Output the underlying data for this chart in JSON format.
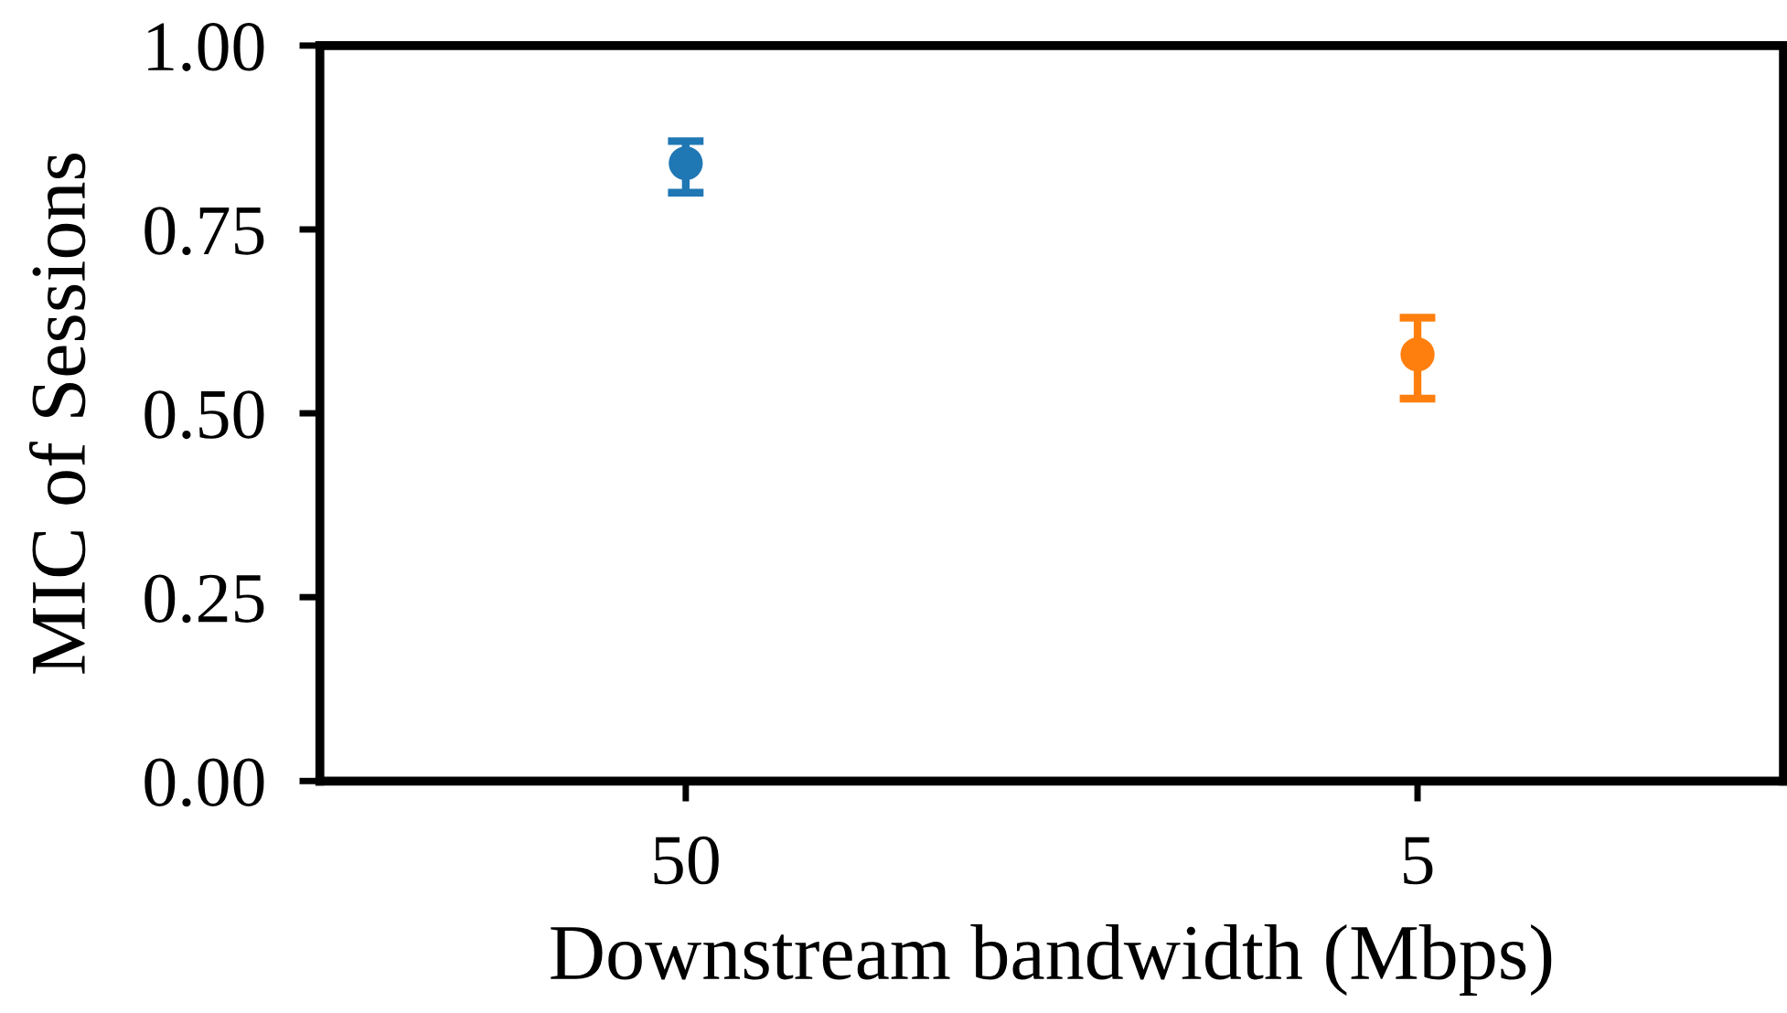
{
  "chart_data": {
    "type": "scatter",
    "xlabel": "Downstream bandwidth (Mbps)",
    "ylabel": "MIC of Sessions",
    "categories": [
      "50",
      "5"
    ],
    "values": [
      0.84,
      0.58
    ],
    "colors": [
      "#1f77b4",
      "#ff7f0e"
    ],
    "errors": [
      [
        0.8,
        0.87
      ],
      [
        0.52,
        0.63
      ]
    ],
    "marker": "circle",
    "ylim": [
      0,
      1
    ],
    "yticks": [
      {
        "value": 0,
        "label": "0.00"
      },
      {
        "value": 0.25,
        "label": "0.25"
      },
      {
        "value": 0.5,
        "label": "0.50"
      },
      {
        "value": 0.75,
        "label": "0.75"
      },
      {
        "value": 1,
        "label": "1.00"
      }
    ]
  }
}
